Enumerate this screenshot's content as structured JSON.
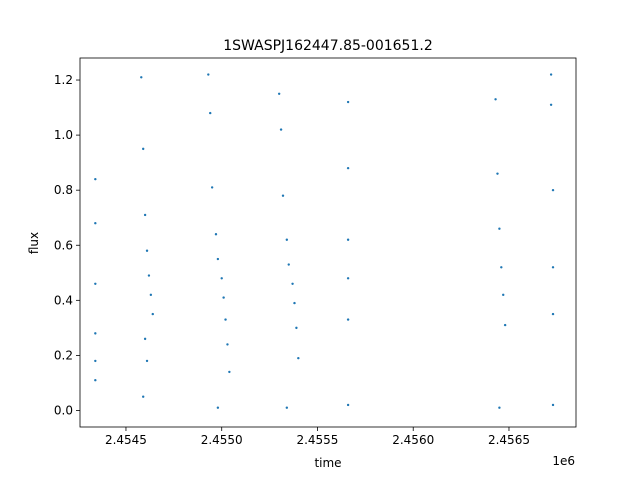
{
  "chart_data": {
    "type": "scatter",
    "title": "1SWASPJ162447.85-001651.2",
    "xlabel": "time",
    "ylabel": "flux",
    "x_offset_label": "1e6",
    "xlim": [
      2.45426,
      2.45685
    ],
    "ylim": [
      -0.06,
      1.28
    ],
    "x_ticks": [
      2.4545,
      2.455,
      2.4555,
      2.456,
      2.4565
    ],
    "x_tick_labels": [
      "2.4545",
      "2.4550",
      "2.4555",
      "2.4560",
      "2.4565"
    ],
    "y_ticks": [
      0.0,
      0.2,
      0.4,
      0.6,
      0.8,
      1.0,
      1.2
    ],
    "y_tick_labels": [
      "0.0",
      "0.2",
      "0.4",
      "0.6",
      "0.8",
      "1.0",
      "1.2"
    ],
    "grid": false,
    "marker_color": "#1f77b4",
    "series": [
      {
        "x": [
          2.45434,
          2.45434,
          2.45434,
          2.45434,
          2.45434,
          2.45434
        ],
        "y": [
          0.84,
          0.68,
          0.46,
          0.28,
          0.18,
          0.11
        ]
      },
      {
        "x": [
          2.45458,
          2.45459,
          2.4546,
          2.45461,
          2.45462,
          2.45463,
          2.45464,
          2.4546,
          2.45461,
          2.45459
        ],
        "y": [
          1.21,
          0.95,
          0.71,
          0.58,
          0.49,
          0.42,
          0.35,
          0.26,
          0.18,
          0.05
        ]
      },
      {
        "x": [
          2.45493,
          2.45494,
          2.45495,
          2.45497,
          2.45498,
          2.455,
          2.45501,
          2.45502,
          2.45503,
          2.45504,
          2.45498
        ],
        "y": [
          1.22,
          1.08,
          0.81,
          0.64,
          0.55,
          0.48,
          0.41,
          0.33,
          0.24,
          0.14,
          0.01
        ]
      },
      {
        "x": [
          2.4553,
          2.45531,
          2.45532,
          2.45534,
          2.45535,
          2.45537,
          2.45538,
          2.45539,
          2.4554,
          2.45534
        ],
        "y": [
          1.15,
          1.02,
          0.78,
          0.62,
          0.53,
          0.46,
          0.39,
          0.3,
          0.19,
          0.01
        ]
      },
      {
        "x": [
          2.45566,
          2.45566,
          2.45566,
          2.45566,
          2.45566,
          2.45566
        ],
        "y": [
          1.12,
          0.88,
          0.62,
          0.48,
          0.33,
          0.02
        ]
      },
      {
        "x": [
          2.45643,
          2.45644,
          2.45645,
          2.45646,
          2.45647,
          2.45648,
          2.45645
        ],
        "y": [
          1.13,
          0.86,
          0.66,
          0.52,
          0.42,
          0.31,
          0.01
        ]
      },
      {
        "x": [
          2.45672,
          2.45672,
          2.45673,
          2.45673,
          2.45673,
          2.45673
        ],
        "y": [
          1.22,
          1.11,
          0.8,
          0.52,
          0.35,
          0.02
        ]
      }
    ]
  }
}
